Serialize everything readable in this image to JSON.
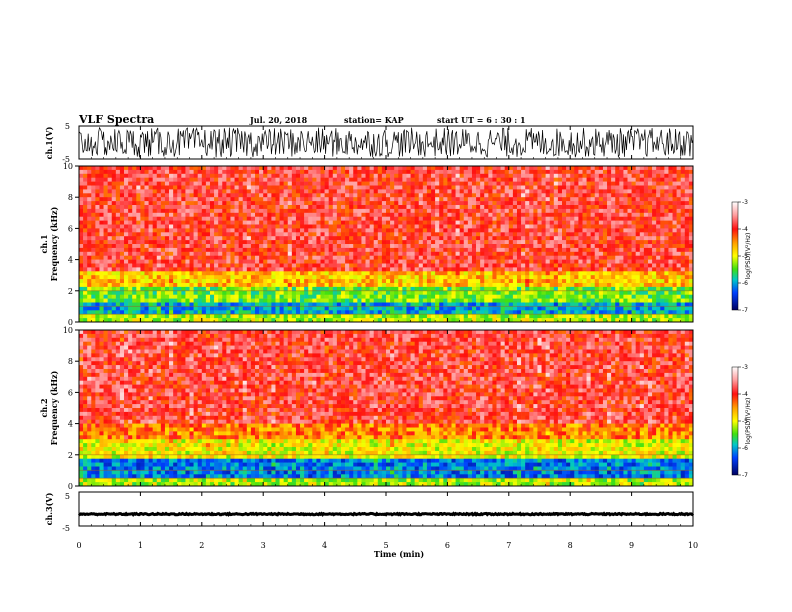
{
  "header": {
    "title": "VLF Spectra",
    "date": "Jul. 20, 2018",
    "station": "station= KAP",
    "start": "start  UT =  6 : 30 : 1"
  },
  "chart_data": [
    {
      "type": "line",
      "name": "ch1-waveform",
      "ylabel": "ch.1(V)",
      "ylim": [
        -5,
        5
      ],
      "yticks": [
        "5",
        "-5"
      ],
      "xlim": [
        0,
        10
      ],
      "description_values": {
        "mean": 0,
        "amplitude": 4.5
      }
    },
    {
      "type": "heatmap",
      "name": "ch1-spectrogram",
      "ylabel": "ch.1\nFrequency (kHz)",
      "ylabel_lines": [
        "ch.1",
        "Frequency (kHz)"
      ],
      "ylim": [
        0,
        10
      ],
      "yticks": [
        "0",
        "2",
        "4",
        "6",
        "8",
        "10"
      ],
      "xlim": [
        0,
        10
      ],
      "colorbar": {
        "label": "log(PSD)(V²/Hz)",
        "ticks": [
          "-3",
          "-4",
          "-5",
          "-6",
          "-7"
        ],
        "range": [
          -7,
          -3
        ]
      },
      "bands_khz": [
        [
          0,
          0.6,
          -5.2
        ],
        [
          0.6,
          1.2,
          -6.0
        ],
        [
          1.2,
          2.2,
          -5.4
        ],
        [
          2.2,
          3.2,
          -4.7
        ],
        [
          3.2,
          10,
          -3.9
        ]
      ]
    },
    {
      "type": "heatmap",
      "name": "ch2-spectrogram",
      "ylabel": "ch.2\nFrequency (kHz)",
      "ylabel_lines": [
        "ch.2",
        "Frequency (kHz)"
      ],
      "ylim": [
        0,
        10
      ],
      "yticks": [
        "0",
        "2",
        "4",
        "6",
        "8",
        "10"
      ],
      "xlim": [
        0,
        10
      ],
      "colorbar": {
        "label": "log(PSD)(V²/Hz)",
        "ticks": [
          "-3",
          "-4",
          "-5",
          "-6",
          "-7"
        ],
        "range": [
          -7,
          -3
        ]
      },
      "bands_khz": [
        [
          0,
          0.6,
          -5.2
        ],
        [
          0.6,
          1.8,
          -6.2
        ],
        [
          1.8,
          3.0,
          -5.0
        ],
        [
          3.0,
          4.0,
          -4.4
        ],
        [
          4.0,
          10,
          -3.9
        ]
      ]
    },
    {
      "type": "line",
      "name": "ch3-waveform",
      "ylabel": "ch.3(V)",
      "ylim": [
        -5,
        5
      ],
      "yticks": [
        "5",
        "-5"
      ],
      "xlim": [
        0,
        10
      ],
      "description_values": {
        "mean": -1.5,
        "amplitude": 0.2
      }
    }
  ],
  "xaxis": {
    "label": "Time (min)",
    "ticks": [
      "0",
      "1",
      "2",
      "3",
      "4",
      "5",
      "6",
      "7",
      "8",
      "9",
      "10"
    ]
  },
  "colors": {
    "background": "#ffffff",
    "axis": "#000000"
  }
}
